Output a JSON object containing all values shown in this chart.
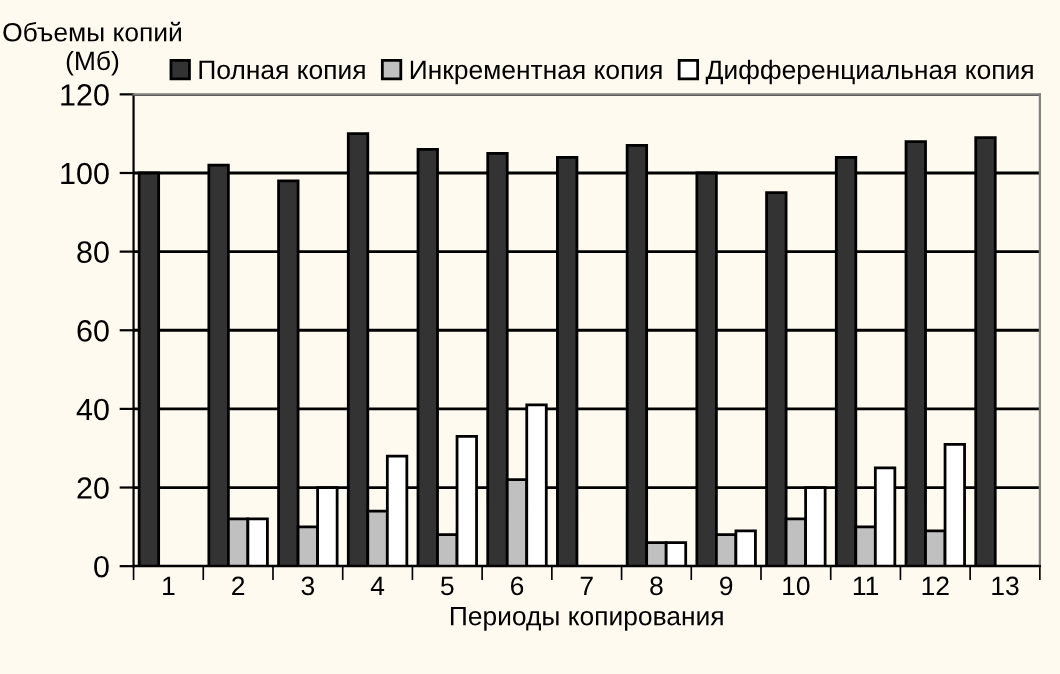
{
  "chart_data": {
    "type": "bar",
    "ylabel": "Объемы копий\n(Мб)",
    "xlabel": "Периоды копирования",
    "categories": [
      "1",
      "2",
      "3",
      "4",
      "5",
      "6",
      "7",
      "8",
      "9",
      "10",
      "11",
      "12",
      "13"
    ],
    "series": [
      {
        "name": "Полная копия",
        "color": "#333333",
        "values": [
          100,
          102,
          98,
          110,
          106,
          105,
          104,
          107,
          100,
          95,
          104,
          108,
          109
        ]
      },
      {
        "name": "Инкрементная копия",
        "color": "#c0c0c0",
        "values": [
          null,
          12,
          10,
          14,
          8,
          22,
          null,
          6,
          8,
          12,
          10,
          9,
          null
        ]
      },
      {
        "name": "Дифференциальная копия",
        "color": "#ffffff",
        "values": [
          null,
          12,
          20,
          28,
          33,
          41,
          null,
          6,
          9,
          20,
          25,
          31,
          null
        ]
      }
    ],
    "ylim": [
      0,
      120
    ],
    "yticks": [
      0,
      20,
      40,
      60,
      80,
      100,
      120
    ],
    "grid": "y",
    "legend": "top right"
  }
}
